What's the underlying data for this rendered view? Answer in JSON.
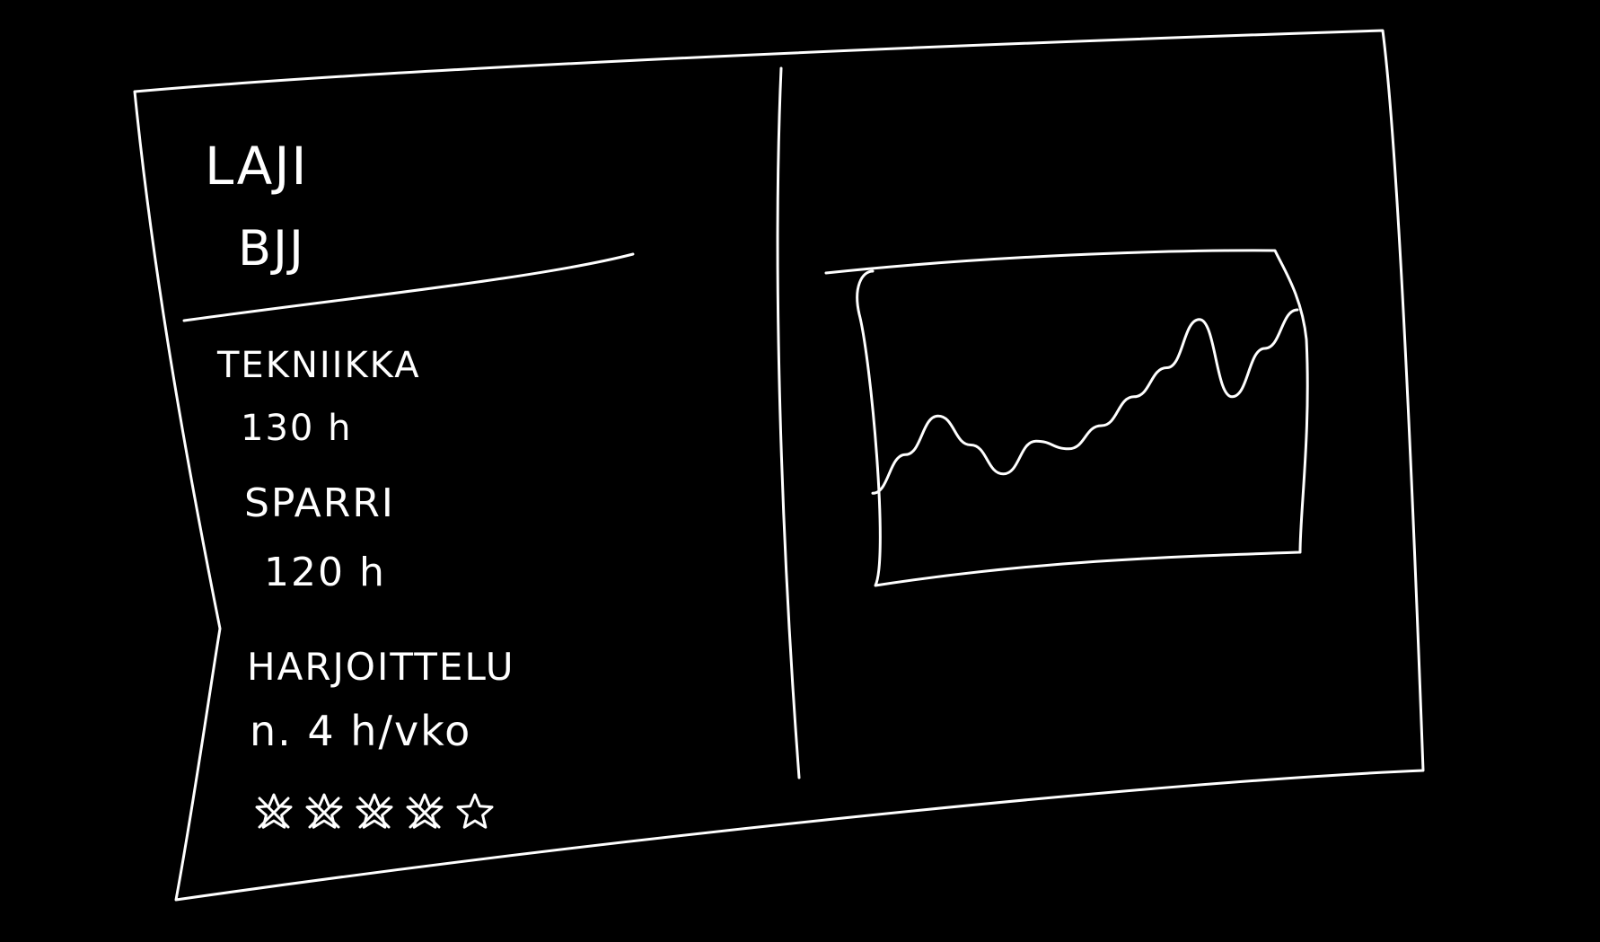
{
  "left_panel": {
    "sport_heading": "LAJI",
    "sport_value": "BJJ",
    "technique_heading": "TEKNIIKKA",
    "technique_value": "130 h",
    "sparring_heading": "SPARRI",
    "sparring_value": "120 h",
    "training_heading": "HARJOITTELU",
    "training_value": "n. 4 h/vko",
    "rating": {
      "stars_total": 5,
      "stars_filled": 4
    }
  },
  "chart_data": {
    "type": "line",
    "title": "",
    "xlabel": "",
    "ylabel": "",
    "x": [
      0,
      1,
      2,
      3,
      4,
      5,
      6,
      7,
      8,
      9,
      10,
      11,
      12,
      13
    ],
    "series": [
      {
        "values": [
          0.05,
          0.25,
          0.45,
          0.3,
          0.15,
          0.32,
          0.28,
          0.4,
          0.55,
          0.7,
          0.95,
          0.55,
          0.8,
          1.0
        ]
      }
    ],
    "ylim": [
      0,
      1
    ],
    "grid": false
  },
  "colors": {
    "background": "#000000",
    "ink": "#ffffff"
  }
}
